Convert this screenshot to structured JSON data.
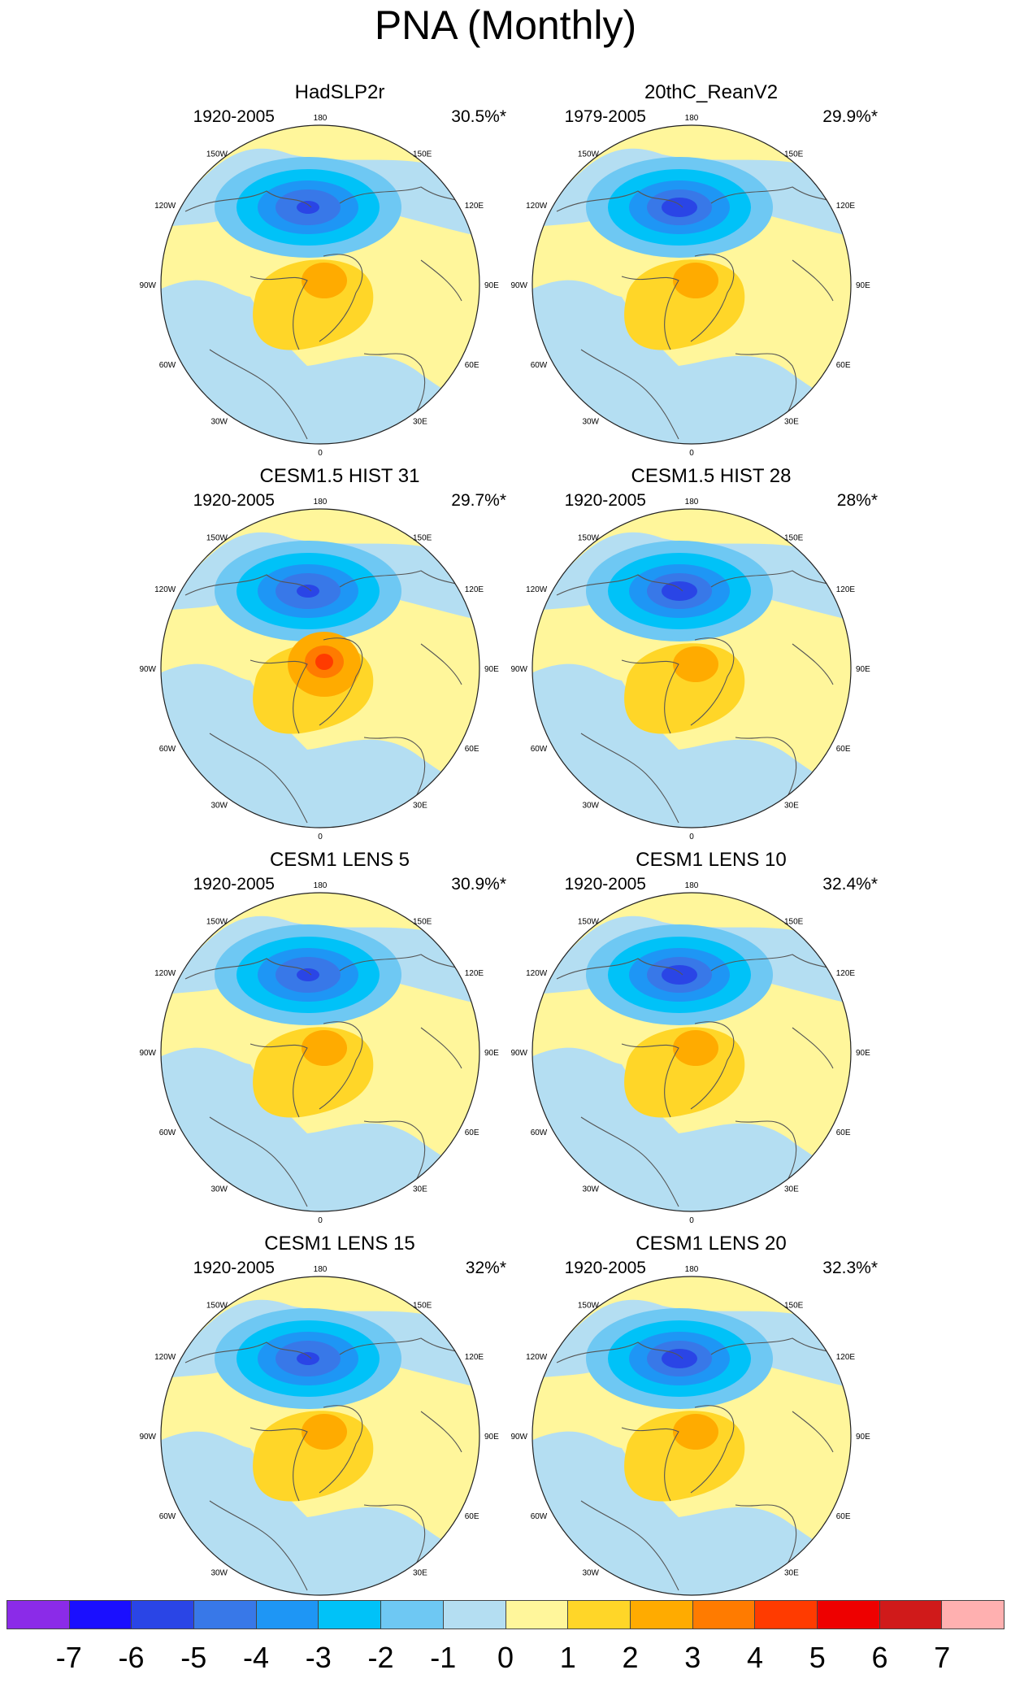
{
  "title": "PNA (Monthly)",
  "panels": [
    {
      "title": "HadSLP2r",
      "period": "1920-2005",
      "pct": "30.5%*"
    },
    {
      "title": "20thC_ReanV2",
      "period": "1979-2005",
      "pct": "29.9%*"
    },
    {
      "title": "CESM1.5 HIST 31",
      "period": "1920-2005",
      "pct": "29.7%*"
    },
    {
      "title": "CESM1.5 HIST 28",
      "period": "1920-2005",
      "pct": "28%*"
    },
    {
      "title": "CESM1 LENS 5",
      "period": "1920-2005",
      "pct": "30.9%*"
    },
    {
      "title": "CESM1 LENS 10",
      "period": "1920-2005",
      "pct": "32.4%*"
    },
    {
      "title": "CESM1 LENS 15",
      "period": "1920-2005",
      "pct": "32%*"
    },
    {
      "title": "CESM1 LENS 20",
      "period": "1920-2005",
      "pct": "32.3%*"
    }
  ],
  "longitude_labels": {
    "top": "180",
    "top_left": "150W",
    "top_right": "150E",
    "upper_left": "120W",
    "upper_right": "120E",
    "left": "90W",
    "right": "90E",
    "lower_left": "60W",
    "lower_right": "60E",
    "bottom_left": "30W",
    "bottom_right": "30E",
    "bottom": "0"
  },
  "colorbar": {
    "labels": [
      "-7",
      "-6",
      "-5",
      "-4",
      "-3",
      "-2",
      "-1",
      "0",
      "1",
      "2",
      "3",
      "4",
      "5",
      "6",
      "7"
    ],
    "colors": [
      "#8b2be8",
      "#1a0fff",
      "#2a45e6",
      "#3878e8",
      "#1e96f5",
      "#00c2f8",
      "#6ec8f3",
      "#b4def2",
      "#fff69b",
      "#ffd628",
      "#ffab00",
      "#ff7b00",
      "#ff3b00",
      "#ee0000",
      "#d01a1a",
      "#ffb0b0"
    ]
  }
}
